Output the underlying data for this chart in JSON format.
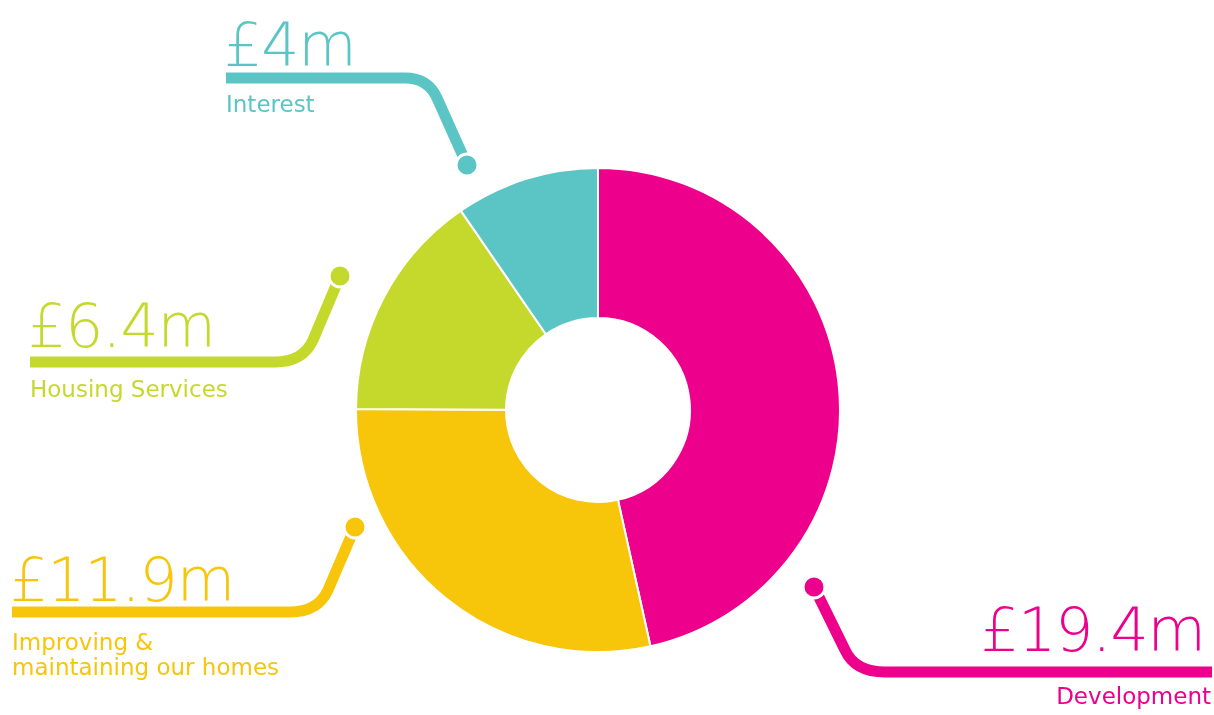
{
  "chart_data": {
    "type": "donut",
    "categories": [
      "Development",
      "Improving &\nmaintaining our homes",
      "Housing Services",
      "Interest"
    ],
    "values": [
      19.4,
      11.9,
      6.4,
      4
    ],
    "value_labels": [
      "£19.4m",
      "£11.9m",
      "£6.4m",
      "£4m"
    ],
    "colors": [
      "#ec008c",
      "#f7c50a",
      "#c5d92d",
      "#5bc5c6"
    ],
    "legend": false
  }
}
